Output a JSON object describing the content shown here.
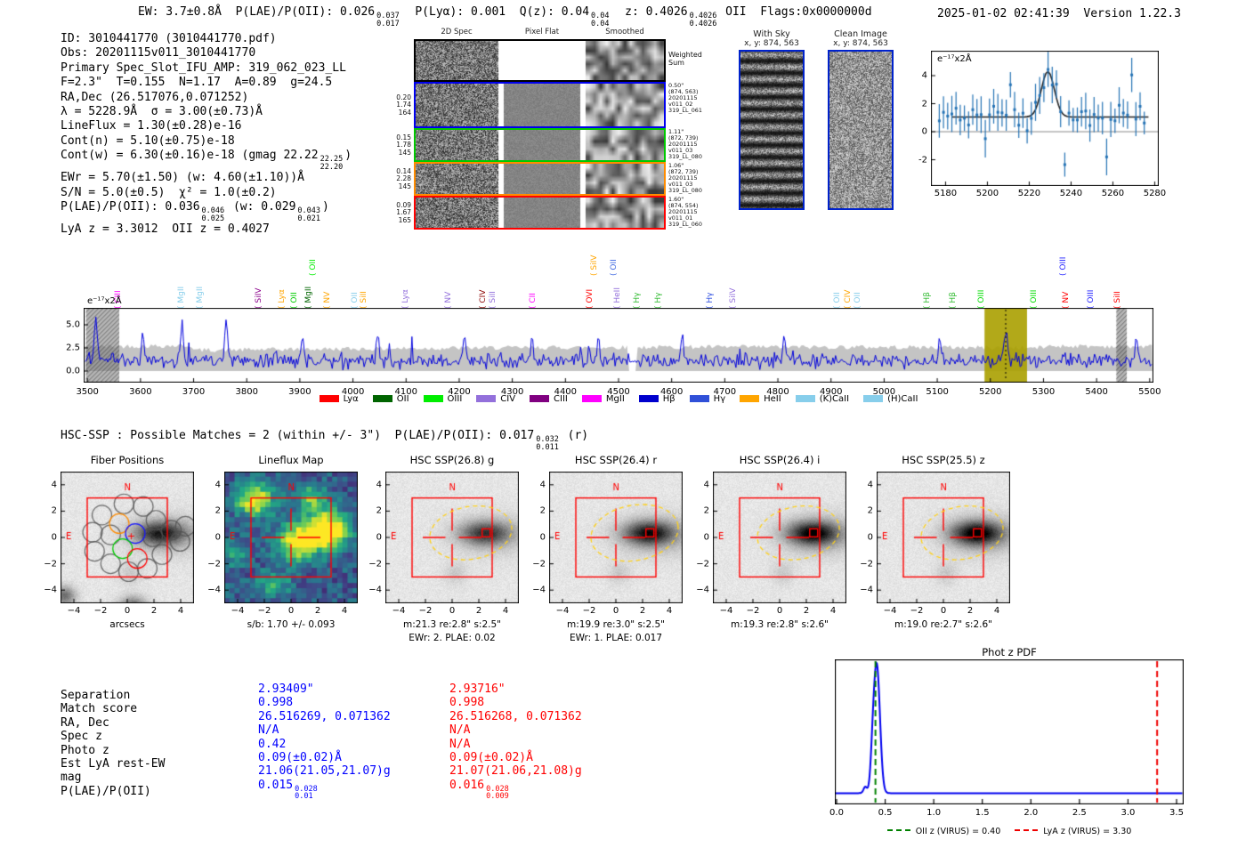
{
  "header": {
    "segments": [
      {
        "t": "EW: 3.7±0.8Å  P(LAE)/P(OII): 0.026"
      },
      {
        "sup": "0.037",
        "sub": "0.017"
      },
      {
        "t": "  P(Lyα): 0.001  Q(z): 0.04"
      },
      {
        "sup": "0.04",
        "sub": "0.04"
      },
      {
        "t": "  z: 0.4026"
      },
      {
        "sup": "0.4026",
        "sub": "0.4026"
      },
      {
        "t": " OII  Flags:0x0000000d"
      }
    ],
    "timestamp": "2025-01-02 02:41:39",
    "version": "Version 1.22.3"
  },
  "info_block": {
    "lines": [
      [
        {
          "t": "ID: 3010441770 (3010441770.pdf)"
        }
      ],
      [
        {
          "t": "Obs: 20201115v011_3010441770"
        }
      ],
      [
        {
          "t": "Primary Spec_Slot_IFU_AMP: 319_062_023_LL"
        }
      ],
      [
        {
          "t": "F=2.3\"  T=0.155  N=1.17  A=0.89  g=24.5"
        }
      ],
      [
        {
          "t": "RA,Dec (26.517076,0.071252)"
        }
      ],
      [
        {
          "t": "λ = 5228.9Å  σ = 3.00(±0.73)Å"
        }
      ],
      [
        {
          "t": "LineFlux = 1.30(±0.28)e-16"
        }
      ],
      [
        {
          "t": "Cont(n) = 5.10(±0.75)e-18"
        }
      ],
      [
        {
          "t": "Cont(w) = 6.30(±0.16)e-18 (gmag 22.22"
        },
        {
          "sup": "22.25",
          "sub": "22.20"
        },
        {
          "t": ")"
        }
      ],
      [
        {
          "t": "EWr = 5.70(±1.50) (w: 4.60(±1.10))Å"
        }
      ],
      [
        {
          "t": "S/N = 5.0(±0.5)  χ² = 1.0(±0.2)"
        }
      ],
      [
        {
          "t": "P(LAE)/P(OII): 0.036"
        },
        {
          "sup": "0.046",
          "sub": "0.025"
        },
        {
          "t": " (w: 0.029"
        },
        {
          "sup": "0.043",
          "sub": "0.021"
        },
        {
          "t": ")"
        }
      ],
      [
        {
          "t": "LyA z = 3.3012  OII z = 0.4027"
        }
      ]
    ]
  },
  "spec2d": {
    "col_titles": [
      "2D Spec",
      "Pixel Flat",
      "Smoothed"
    ],
    "rows": [
      {
        "color": "#000000",
        "left": [],
        "right": [
          "Weighted",
          "Sum"
        ]
      },
      {
        "color": "#0000ee",
        "left": [
          "0.20",
          "1.74",
          "164"
        ],
        "right": [
          "0.50\"",
          "(874, 563)",
          "20201115",
          "v011_02",
          "319_LL_061"
        ]
      },
      {
        "color": "#00c800",
        "left": [
          "0.15",
          "1.78",
          "145"
        ],
        "right": [
          "1.11\"",
          "(872, 739)",
          "20201115",
          "v011_03",
          "319_LL_080"
        ]
      },
      {
        "color": "#ff8c00",
        "left": [
          "0.14",
          "2.28",
          "145"
        ],
        "right": [
          "1.06\"",
          "(872, 739)",
          "20201115",
          "v011_03",
          "319_LL_080"
        ]
      },
      {
        "color": "#ff0000",
        "left": [
          "0.09",
          "1.67",
          "165"
        ],
        "right": [
          "1.60\"",
          "(874, 554)",
          "20201115",
          "v011_01",
          "319_LL_060"
        ]
      }
    ]
  },
  "sky_panels": [
    {
      "title": "With Sky",
      "coords": "x, y: 874, 563",
      "striped": true
    },
    {
      "title": "Clean Image",
      "coords": "x, y: 874, 563",
      "striped": false
    }
  ],
  "hsc_header_segments": [
    {
      "t": "HSC-SSP : Possible Matches = 2 (within +/- 3\")  P(LAE)/P(OII): 0.017"
    },
    {
      "sup": "0.032",
      "sub": "0.011"
    },
    {
      "t": " (r)"
    }
  ],
  "cutouts": {
    "xtick_values": [
      -4,
      -2,
      0,
      2,
      4
    ],
    "xtick_labels": [
      "−4",
      "−2",
      "0",
      "2",
      "4"
    ],
    "ytick_values": [
      4,
      2,
      0,
      -2,
      -4
    ],
    "ytick_labels": [
      "4",
      "2",
      "0",
      "−2",
      "−4"
    ],
    "compass_n": "N",
    "compass_e": "E",
    "fiber_cross": "+",
    "panels": [
      {
        "title": "Fiber Positions",
        "kind": "fiber",
        "captions": [
          "arcsecs"
        ],
        "depth": 170
      },
      {
        "title": "Lineflux Map",
        "kind": "heatmap",
        "captions": [
          "s/b: 1.70 +/- 0.093"
        ],
        "depth": 0
      },
      {
        "title": "HSC SSP(26.8) g",
        "kind": "sky",
        "captions": [
          "m:21.3 re:2.8\" s:2.5\"",
          "EWr: 2. PLAE: 0.02"
        ],
        "depth": 150
      },
      {
        "title": "HSC SSP(26.4) r",
        "kind": "sky",
        "captions": [
          "m:19.9 re:3.0\" s:2.5\"",
          "EWr: 1. PLAE: 0.017"
        ],
        "depth": 185
      },
      {
        "title": "HSC SSP(26.4) i",
        "kind": "sky",
        "captions": [
          "m:19.3 re:2.8\" s:2.6\""
        ],
        "depth": 200
      },
      {
        "title": "HSC SSP(25.5) z",
        "kind": "sky",
        "captions": [
          "m:19.0 re:2.7\" s:2.6\""
        ],
        "depth": 205
      }
    ]
  },
  "match_table": {
    "rows": [
      {
        "label": "Separation",
        "blue": [
          {
            "t": "2.93409\""
          }
        ],
        "red": [
          {
            "t": "2.93716\""
          }
        ]
      },
      {
        "label": "Match score",
        "blue": [
          {
            "t": "0.998"
          }
        ],
        "red": [
          {
            "t": "0.998"
          }
        ]
      },
      {
        "label": "RA, Dec",
        "blue": [
          {
            "t": "26.516269, 0.071362"
          }
        ],
        "red": [
          {
            "t": "26.516268, 0.071362"
          }
        ]
      },
      {
        "label": "Spec z",
        "blue": [
          {
            "t": "N/A"
          }
        ],
        "red": [
          {
            "t": "N/A"
          }
        ]
      },
      {
        "label": "Photo z",
        "blue": [
          {
            "t": "0.42"
          }
        ],
        "red": [
          {
            "t": "N/A"
          }
        ]
      },
      {
        "label": "Est LyA rest-EW",
        "blue": [
          {
            "t": "0.09(±0.02)Å"
          }
        ],
        "red": [
          {
            "t": "0.09(±0.02)Å"
          }
        ]
      },
      {
        "label": "mag",
        "blue": [
          {
            "t": "21.06(21.05,21.07)g"
          }
        ],
        "red": [
          {
            "t": "21.07(21.06,21.08)g"
          }
        ]
      },
      {
        "label": "P(LAE)/P(OII)",
        "blue": [
          {
            "t": "0.015"
          },
          {
            "sup": "0.028",
            "sub": "0.01"
          }
        ],
        "red": [
          {
            "t": "0.016"
          },
          {
            "sup": "0.028",
            "sub": "0.009"
          }
        ]
      }
    ],
    "blue_color": "#0000ff",
    "red_color": "#ff0000"
  },
  "chart_data": [
    {
      "id": "line_fit",
      "type": "scatter",
      "title": "",
      "units_label": "e⁻¹⁷x2Å",
      "x_range": [
        5173,
        5282
      ],
      "xticks": [
        5180,
        5200,
        5220,
        5240,
        5260,
        5280
      ],
      "yticks": [
        4,
        2,
        0,
        -2
      ],
      "gaussian_fit": {
        "center": 5228.9,
        "sigma": 3.1,
        "amplitude": 3.25,
        "baseline": 1.05
      },
      "notable_points": [
        [
          5199,
          -0.5
        ],
        [
          5211,
          3.35
        ],
        [
          5237,
          -2.35
        ],
        [
          5257,
          -1.8
        ],
        [
          5269,
          4.05
        ]
      ],
      "marker_color": "#2472b4",
      "zero_line": true
    },
    {
      "id": "main_spectrum",
      "type": "line",
      "units_label": "e⁻¹⁷x2Å",
      "x_range": [
        3493,
        5507
      ],
      "xticks": [
        3500,
        3600,
        3700,
        3800,
        3900,
        4000,
        4100,
        4200,
        4300,
        4400,
        4500,
        4600,
        4700,
        4800,
        4900,
        5000,
        5100,
        5200,
        5300,
        5400,
        5500
      ],
      "yticks": [
        "5.0",
        "2.5",
        "0.0"
      ],
      "ylim": [
        -1.1,
        6.8
      ],
      "line_color": "#0000dd",
      "error_envelope_color": "#c4c4c4",
      "detected_line": {
        "wavelength": 5228.9,
        "amplitude": 2.9,
        "sigma": 4
      },
      "highlight_band": {
        "x0": 5189,
        "x1": 5269,
        "color": "#aaa000"
      },
      "hatched_bands": [
        [
          3497,
          3560
        ],
        [
          5437,
          5457
        ]
      ],
      "spikes": [
        [
          3516,
          5.0
        ],
        [
          3604,
          3.4
        ],
        [
          3678,
          4.1
        ],
        [
          3762,
          4.6
        ],
        [
          3905,
          3.2
        ],
        [
          4047,
          3.1
        ],
        [
          4210,
          2.9
        ],
        [
          4337,
          2.9
        ],
        [
          4462,
          2.6
        ],
        [
          4620,
          2.5
        ],
        [
          4812,
          2.4
        ],
        [
          5105,
          2.3
        ],
        [
          5475,
          2.2
        ]
      ],
      "line_labels": [
        {
          "name": "CIII",
          "wave": 3574,
          "color": "#ff00ff",
          "tier": 0
        },
        {
          "name": "MgII",
          "wave": 3692,
          "color": "#87ceeb",
          "tier": 0
        },
        {
          "name": "MgII",
          "wave": 3727,
          "color": "#87ceeb",
          "tier": 0
        },
        {
          "name": "SiIV",
          "wave": 3838,
          "color": "#8b008b",
          "tier": 0
        },
        {
          "name": "Lyα",
          "wave": 3882,
          "color": "#ffa500",
          "tier": 0
        },
        {
          "name": "OII",
          "wave": 3906,
          "color": "#00cc00",
          "tier": 0
        },
        {
          "name": "MgII",
          "wave": 3932,
          "color": "#006400",
          "tier": 0
        },
        {
          "name": "OII",
          "wave": 3941,
          "color": "#00ee00",
          "tier": 1
        },
        {
          "name": "NV",
          "wave": 3968,
          "color": "#ffa500",
          "tier": 0
        },
        {
          "name": "OII",
          "wave": 4019,
          "color": "#87ceeb",
          "tier": 0
        },
        {
          "name": "SiII",
          "wave": 4036,
          "color": "#ffa500",
          "tier": 0
        },
        {
          "name": "Lyα",
          "wave": 4115,
          "color": "#9370db",
          "tier": 0
        },
        {
          "name": "NV",
          "wave": 4195,
          "color": "#9370db",
          "tier": 0
        },
        {
          "name": "CIV",
          "wave": 4260,
          "color": "#8b0000",
          "tier": 0
        },
        {
          "name": "SiII",
          "wave": 4279,
          "color": "#9370db",
          "tier": 0
        },
        {
          "name": "CII",
          "wave": 4354,
          "color": "#ff00ff",
          "tier": 0
        },
        {
          "name": "OVI",
          "wave": 4461,
          "color": "#ff0000",
          "tier": 0
        },
        {
          "name": "SiIV",
          "wave": 4470,
          "color": "#ffa500",
          "tier": 1
        },
        {
          "name": "OII",
          "wave": 4506,
          "color": "#4169e1",
          "tier": 1
        },
        {
          "name": "HeII",
          "wave": 4513,
          "color": "#9370db",
          "tier": 0
        },
        {
          "name": "Hγ",
          "wave": 4550,
          "color": "#33bb33",
          "tier": 0
        },
        {
          "name": "Hγ",
          "wave": 4591,
          "color": "#33bb33",
          "tier": 0
        },
        {
          "name": "Hγ",
          "wave": 4687,
          "color": "#2e4fe0",
          "tier": 0
        },
        {
          "name": "SiIV",
          "wave": 4731,
          "color": "#9370db",
          "tier": 0
        },
        {
          "name": "OII",
          "wave": 4928,
          "color": "#87ceeb",
          "tier": 0
        },
        {
          "name": "CIV",
          "wave": 4948,
          "color": "#ffa500",
          "tier": 0
        },
        {
          "name": "OII",
          "wave": 4965,
          "color": "#87ceeb",
          "tier": 0
        },
        {
          "name": "Hβ",
          "wave": 5097,
          "color": "#33bb33",
          "tier": 0
        },
        {
          "name": "Hβ",
          "wave": 5145,
          "color": "#33bb33",
          "tier": 0
        },
        {
          "name": "OIII",
          "wave": 5199,
          "color": "#00dd00",
          "tier": 0
        },
        {
          "name": "OIII",
          "wave": 5298,
          "color": "#00dd00",
          "tier": 0
        },
        {
          "name": "OIII",
          "wave": 5353,
          "color": "#2222ff",
          "tier": 1
        },
        {
          "name": "NV",
          "wave": 5358,
          "color": "#ff0000",
          "tier": 0
        },
        {
          "name": "OIII",
          "wave": 5404,
          "color": "#2222ff",
          "tier": 0
        },
        {
          "name": "SiII",
          "wave": 5455,
          "color": "#ff0000",
          "tier": 0
        }
      ],
      "legend": [
        {
          "label": "Lyα",
          "color": "#ff0000"
        },
        {
          "label": "OII",
          "color": "#006400"
        },
        {
          "label": "OIII",
          "color": "#00ee00"
        },
        {
          "label": "CIV",
          "color": "#9370db"
        },
        {
          "label": "CIII",
          "color": "#800080"
        },
        {
          "label": "MgII",
          "color": "#ff00ff"
        },
        {
          "label": "Hβ",
          "color": "#0000cd"
        },
        {
          "label": "Hγ",
          "color": "#3050d8"
        },
        {
          "label": "HeII",
          "color": "#ffa500"
        },
        {
          "label": "(K)CaII",
          "color": "#87ceeb"
        },
        {
          "label": "(H)CaII",
          "color": "#87ceeb"
        }
      ]
    },
    {
      "id": "photz_pdf",
      "type": "line",
      "title": "Phot z PDF",
      "xticks": [
        "0.0",
        "0.5",
        "1.0",
        "1.5",
        "2.0",
        "2.5",
        "3.0",
        "3.5"
      ],
      "x_range": [
        -0.02,
        3.57
      ],
      "peak_z": 0.42,
      "curve": {
        "main": [
          0.415,
          0.032,
          1.0
        ],
        "shoulder": [
          0.372,
          0.022,
          0.22
        ],
        "bump": [
          0.295,
          0.018,
          0.05
        ],
        "baseline": 0.015
      },
      "line_color": "#0000ee",
      "vlines": [
        {
          "z": 0.4,
          "color": "#008000",
          "label": "OII z (VIRUS) = 0.40"
        },
        {
          "z": 3.3,
          "color": "#ee0000",
          "label": "LyA z (VIRUS) = 3.30"
        }
      ]
    }
  ]
}
